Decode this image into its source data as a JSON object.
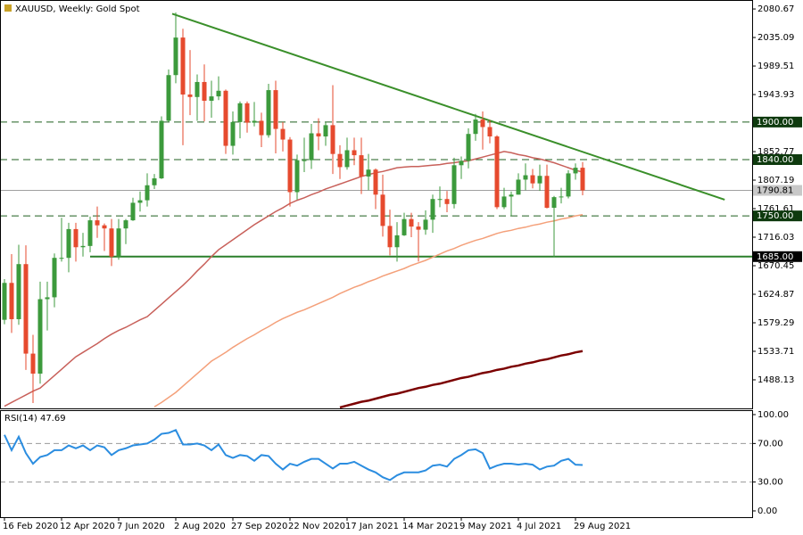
{
  "chart_data": [
    {
      "type": "candlestick",
      "title": "XAUUSD, Weekly:  Gold Spot",
      "categories": [
        "16 Feb 2020",
        null,
        null,
        null,
        null,
        null,
        null,
        null,
        "12 Apr 2020",
        null,
        null,
        null,
        null,
        null,
        null,
        null,
        "7 Jun 2020",
        null,
        null,
        null,
        null,
        null,
        null,
        null,
        "2 Aug 2020",
        null,
        null,
        null,
        null,
        null,
        null,
        null,
        "27 Sep 2020",
        null,
        null,
        null,
        null,
        null,
        null,
        null,
        "22 Nov 2020",
        null,
        null,
        null,
        null,
        null,
        null,
        null,
        "17 Jan 2021",
        null,
        null,
        null,
        null,
        null,
        null,
        null,
        "14 Mar 2021",
        null,
        null,
        null,
        null,
        null,
        null,
        null,
        "9 May 2021",
        null,
        null,
        null,
        null,
        null,
        null,
        null,
        "4 Jul 2021",
        null,
        null,
        null,
        null,
        null,
        null,
        null,
        "29 Aug 2021",
        null
      ],
      "open": [
        1584,
        1643,
        1585,
        1673,
        1530,
        1498,
        1617,
        1620,
        1683,
        1683,
        1729,
        1700,
        1702,
        1743,
        1735,
        1730,
        1685,
        1730,
        1743,
        1771,
        1775,
        1799,
        1810,
        1902,
        1975,
        2035,
        1944,
        1940,
        1964,
        1934,
        1941,
        1950,
        1862,
        1900,
        1930,
        1899,
        1902,
        1879,
        1951,
        1889,
        1872,
        1788,
        1839,
        1839,
        1882,
        1877,
        1895,
        1849,
        1828,
        1855,
        1847,
        1813,
        1824,
        1784,
        1734,
        1700,
        1719,
        1745,
        1733,
        1728,
        1744,
        1777,
        1777,
        1769,
        1831,
        1838,
        1881,
        1904,
        1892,
        1877,
        1764,
        1781,
        1784,
        1808,
        1815,
        1802,
        1814,
        1763,
        1780,
        1781,
        1818,
        1827
      ],
      "high": [
        1649,
        1689,
        1704,
        1703,
        1560,
        1645,
        1645,
        1690,
        1747,
        1739,
        1739,
        1723,
        1749,
        1765,
        1738,
        1745,
        1745,
        1745,
        1779,
        1789,
        1818,
        1817,
        1909,
        1984,
        2075,
        2049,
        2015,
        1976,
        1992,
        1966,
        1973,
        1952,
        1917,
        1933,
        1933,
        1932,
        1915,
        1961,
        1966,
        1900,
        1876,
        1848,
        1875,
        1897,
        1906,
        1900,
        1959,
        1863,
        1875,
        1875,
        1875,
        1849,
        1826,
        1816,
        1760,
        1740,
        1755,
        1755,
        1740,
        1759,
        1784,
        1797,
        1790,
        1843,
        1845,
        1890,
        1913,
        1917,
        1903,
        1879,
        1795,
        1789,
        1818,
        1834,
        1825,
        1832,
        1832,
        1782,
        1795,
        1823,
        1834,
        1836
      ],
      "low": [
        1577,
        1563,
        1576,
        1504,
        1451,
        1482,
        1567,
        1604,
        1677,
        1660,
        1677,
        1685,
        1692,
        1715,
        1694,
        1670,
        1680,
        1705,
        1742,
        1757,
        1765,
        1793,
        1809,
        1900,
        1962,
        1863,
        1911,
        1902,
        1901,
        1907,
        1935,
        1849,
        1848,
        1874,
        1883,
        1893,
        1860,
        1875,
        1850,
        1853,
        1765,
        1776,
        1820,
        1825,
        1855,
        1862,
        1817,
        1809,
        1824,
        1831,
        1785,
        1791,
        1761,
        1717,
        1687,
        1677,
        1718,
        1716,
        1677,
        1720,
        1723,
        1764,
        1756,
        1762,
        1809,
        1826,
        1870,
        1856,
        1866,
        1761,
        1761,
        1750,
        1784,
        1791,
        1794,
        1790,
        1762,
        1684,
        1770,
        1778,
        1808,
        1783
      ],
      "close": [
        1643,
        1585,
        1673,
        1530,
        1498,
        1617,
        1620,
        1683,
        1683,
        1729,
        1700,
        1702,
        1743,
        1735,
        1730,
        1685,
        1730,
        1743,
        1771,
        1775,
        1799,
        1810,
        1902,
        1975,
        2035,
        1944,
        1940,
        1964,
        1934,
        1941,
        1950,
        1862,
        1900,
        1930,
        1899,
        1902,
        1879,
        1951,
        1889,
        1872,
        1788,
        1839,
        1839,
        1882,
        1877,
        1895,
        1849,
        1828,
        1855,
        1847,
        1813,
        1824,
        1784,
        1734,
        1700,
        1719,
        1745,
        1733,
        1728,
        1744,
        1777,
        1777,
        1769,
        1831,
        1838,
        1881,
        1904,
        1892,
        1877,
        1764,
        1781,
        1784,
        1808,
        1815,
        1802,
        1814,
        1763,
        1780,
        1781,
        1818,
        1827,
        1790.81
      ],
      "up_color": "#3c9a3c",
      "down_color": "#e64a2e",
      "ylim": [
        1442.5,
        2095
      ],
      "yticks": [
        2080.67,
        2035.09,
        1989.51,
        1943.93,
        1852.77,
        1807.19,
        1761.61,
        1716.03,
        1670.45,
        1624.87,
        1579.29,
        1533.71,
        1488.13
      ],
      "overlays": [
        {
          "color": "#c8605a",
          "values": [
            1446,
            1452,
            1458,
            1464,
            1470,
            1475,
            1485,
            1495,
            1505,
            1515,
            1525,
            1532,
            1539,
            1546,
            1554,
            1561,
            1567,
            1572,
            1578,
            1584,
            1589,
            1599,
            1609,
            1619,
            1629,
            1639,
            1650,
            1662,
            1673,
            1685,
            1696,
            1704,
            1712,
            1720,
            1728,
            1736,
            1743,
            1750,
            1757,
            1763,
            1770,
            1775,
            1779,
            1784,
            1788,
            1793,
            1797,
            1801,
            1805,
            1809,
            1813,
            1816,
            1819,
            1821,
            1824,
            1827,
            1828,
            1829,
            1829,
            1830,
            1831,
            1832,
            1834,
            1835,
            1837,
            1838,
            1841,
            1844,
            1847,
            1850,
            1853,
            1851,
            1848,
            1846,
            1843,
            1841,
            1838,
            1835,
            1831,
            1827,
            1823,
            1820
          ]
        },
        {
          "color": "#f4a07a",
          "values": [
            null,
            null,
            null,
            null,
            null,
            null,
            null,
            null,
            null,
            null,
            null,
            null,
            null,
            null,
            null,
            null,
            null,
            null,
            null,
            null,
            null,
            1445,
            1452,
            1460,
            1468,
            1478,
            1488,
            1498,
            1508,
            1518,
            1525,
            1532,
            1540,
            1547,
            1554,
            1560,
            1567,
            1573,
            1580,
            1586,
            1591,
            1596,
            1600,
            1605,
            1610,
            1615,
            1620,
            1626,
            1631,
            1636,
            1640,
            1645,
            1649,
            1654,
            1658,
            1662,
            1666,
            1671,
            1675,
            1679,
            1684,
            1689,
            1694,
            1698,
            1703,
            1707,
            1711,
            1714,
            1718,
            1722,
            1725,
            1727,
            1730,
            1732,
            1735,
            1737,
            1740,
            1742,
            1745,
            1747,
            1750,
            1752
          ]
        },
        {
          "color": "#7b0000",
          "values": [
            null,
            null,
            null,
            null,
            null,
            null,
            null,
            null,
            null,
            null,
            null,
            null,
            null,
            null,
            null,
            null,
            null,
            null,
            null,
            null,
            null,
            null,
            null,
            null,
            null,
            null,
            null,
            null,
            null,
            null,
            null,
            null,
            null,
            null,
            null,
            null,
            null,
            null,
            null,
            null,
            null,
            null,
            null,
            null,
            null,
            null,
            null,
            1444,
            1447,
            1450,
            1453,
            1455,
            1458,
            1461,
            1464,
            1466,
            1469,
            1472,
            1475,
            1477,
            1480,
            1482,
            1485,
            1488,
            1491,
            1493,
            1496,
            1499,
            1501,
            1504,
            1506,
            1509,
            1511,
            1514,
            1516,
            1519,
            1521,
            1524,
            1527,
            1529,
            1532,
            1534
          ]
        }
      ],
      "levels": [
        {
          "value": 1900,
          "label": "1900.00",
          "style": "dashed",
          "color": "#1f5f1f",
          "label_bg": "#0e3a0e"
        },
        {
          "value": 1840,
          "label": "1840.00",
          "style": "dashed",
          "color": "#1f5f1f",
          "label_bg": "#0e3a0e"
        },
        {
          "value": 1790.81,
          "label": "1790.81",
          "style": "solid",
          "color": "#a0a0a0",
          "label_bg": "#c8c8c8"
        },
        {
          "value": 1750,
          "label": "1750.00",
          "style": "dashed",
          "color": "#1f5f1f",
          "label_bg": "#0e3a0e"
        },
        {
          "value": 1685,
          "label": "1685.00",
          "style": "solid",
          "color": "#2a7f2a",
          "label_bg": "#000000",
          "start": 12
        }
      ],
      "trendlines": [
        {
          "from": [
            23.5,
            2073
          ],
          "to": [
            100.9,
            1776
          ],
          "color": "#3a8f2a"
        }
      ]
    },
    {
      "type": "line",
      "title": "RSI(14) 47.69",
      "values": [
        79,
        63,
        77,
        60,
        49,
        56,
        58,
        63,
        63,
        68,
        65,
        68,
        63,
        68,
        66,
        58,
        63,
        65,
        68,
        69,
        70,
        74,
        80,
        81,
        84,
        69,
        69,
        70,
        68,
        63,
        69,
        58,
        55,
        58,
        57,
        52,
        58,
        57,
        49,
        43,
        49,
        47,
        51,
        54,
        54,
        49,
        44,
        49,
        49,
        51,
        47,
        43,
        40,
        35,
        32,
        37,
        40,
        40,
        40,
        42,
        47,
        48,
        46,
        54,
        58,
        63,
        64,
        60,
        44,
        47,
        49,
        49,
        48,
        49,
        48,
        43,
        46,
        47,
        52,
        54,
        48,
        47.69
      ],
      "color": "#2b8de0",
      "ylim": [
        -6.5,
        104.6
      ],
      "yticks": [
        {
          "value": 100,
          "label": "100.00",
          "grid": false
        },
        {
          "value": 70,
          "label": "70.00",
          "grid": true
        },
        {
          "value": 30,
          "label": "30.00",
          "grid": true
        },
        {
          "value": 0,
          "label": "0.00",
          "grid": false
        }
      ]
    }
  ]
}
